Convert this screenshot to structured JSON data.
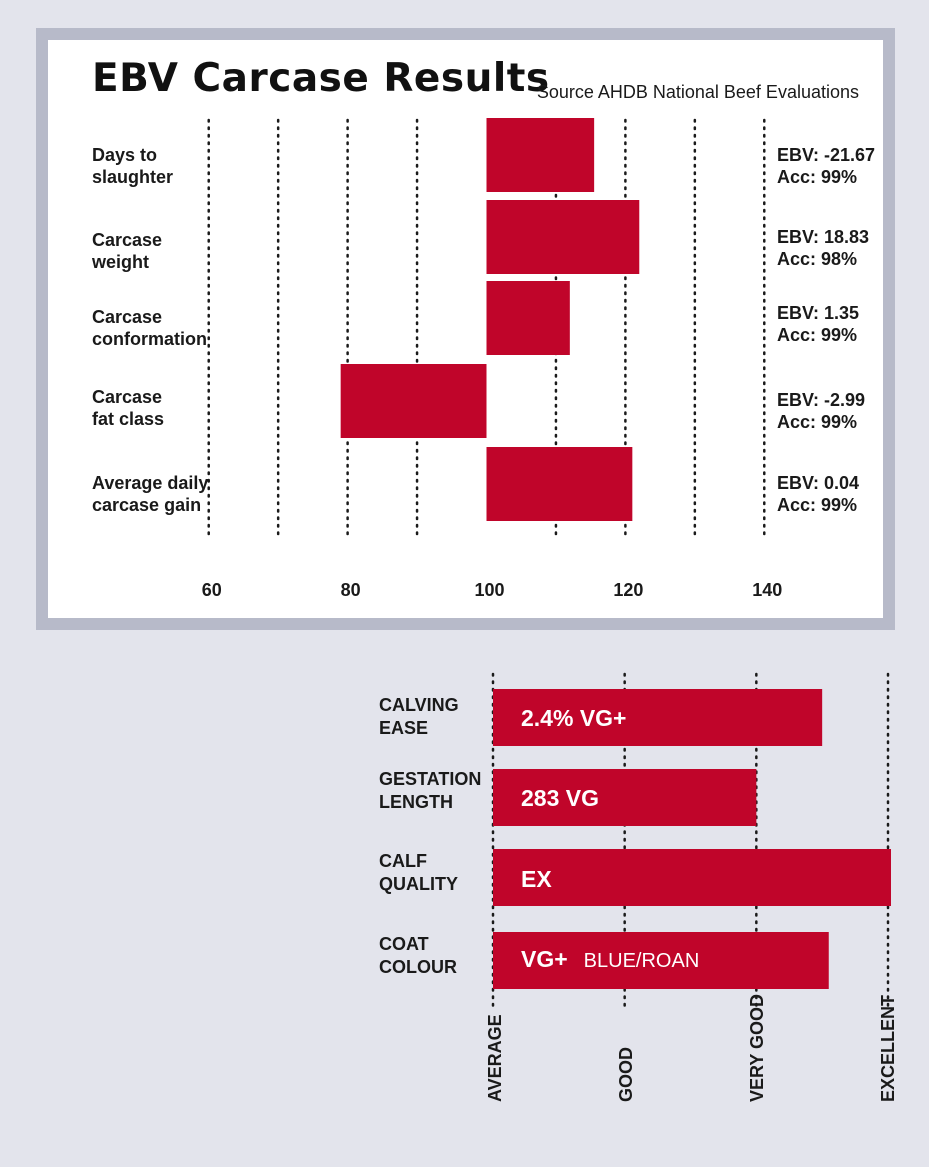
{
  "ebv_panel": {
    "title": "EBV Carcase Results",
    "source": "Source AHDB National Beef Evaluations"
  },
  "trait_panel": {
    "scale": [
      "AVERAGE",
      "GOOD",
      "VERY GOOD",
      "EXCELLENT"
    ]
  },
  "colors": {
    "bar": "#c0052a",
    "panel_border": "#b7bac9",
    "page_bg": "#e3e4ec"
  },
  "chart_data": [
    {
      "type": "bar",
      "orientation": "horizontal",
      "title": "EBV Carcase Results",
      "categories": [
        [
          "Days to",
          "slaughter"
        ],
        [
          "Carcase",
          "weight"
        ],
        [
          "Carcase",
          "conformation"
        ],
        [
          "Carcase",
          "fat class"
        ],
        [
          "Average daily",
          "carcase gain"
        ]
      ],
      "values": [
        115.5,
        122,
        112,
        79,
        121
      ],
      "baseline": 100,
      "xlim": [
        55,
        145
      ],
      "xticks": [
        60,
        80,
        100,
        120,
        140
      ],
      "grid_values": [
        60,
        70,
        80,
        90,
        110,
        120,
        130,
        140
      ],
      "grid": "dotted vertical",
      "annotations": [
        [
          "EBV: -21.67",
          "Acc: 99%"
        ],
        [
          "EBV: 18.83",
          "Acc: 98%"
        ],
        [
          "EBV: 1.35",
          "Acc: 99%"
        ],
        [
          "EBV: -2.99",
          "Acc: 99%"
        ],
        [
          "EBV: 0.04",
          "Acc: 99%"
        ]
      ]
    },
    {
      "type": "bar",
      "orientation": "horizontal",
      "categories": [
        [
          "CALVING",
          "EASE"
        ],
        [
          "GESTATION",
          "LENGTH"
        ],
        [
          "CALF",
          "QUALITY"
        ],
        [
          "COAT",
          "COLOUR"
        ]
      ],
      "values": [
        2.5,
        2,
        3,
        2.55
      ],
      "scale": [
        "AVERAGE",
        "GOOD",
        "VERY GOOD",
        "EXCELLENT"
      ],
      "xlim": [
        0,
        3
      ],
      "labels": [
        {
          "grade": "2.4% VG+",
          "extra": ""
        },
        {
          "grade": "283 VG",
          "extra": ""
        },
        {
          "grade": "EX",
          "extra": ""
        },
        {
          "grade": "VG+",
          "extra": "BLUE/ROAN"
        }
      ]
    }
  ]
}
